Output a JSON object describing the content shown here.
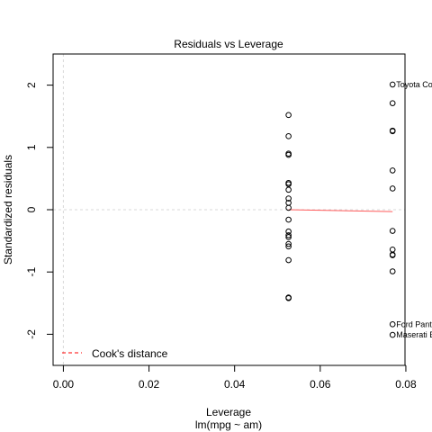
{
  "chart_data": {
    "type": "scatter",
    "title": "Residuals vs Leverage",
    "xlabel": "Leverage",
    "subtitle": "lm(mpg ~ am)",
    "ylabel": "Standardized residuals",
    "xlim": [
      -0.0024,
      0.0798
    ],
    "ylim": [
      -2.5,
      2.5
    ],
    "x_ticks": [
      "0.00",
      "0.02",
      "0.04",
      "0.06",
      "0.08"
    ],
    "x_tick_values": [
      0,
      0.02,
      0.04,
      0.06,
      0.08
    ],
    "y_ticks": [
      "-2",
      "-1",
      "0",
      "1",
      "2"
    ],
    "y_tick_values": [
      -2,
      -1,
      0,
      1,
      2
    ],
    "legend": {
      "position": "bottom-left",
      "entries": [
        {
          "label": "Cook's distance",
          "color": "#ff0000",
          "linetype": "dashed"
        }
      ]
    },
    "reference_lines": {
      "horizontal": 0,
      "vertical": 0,
      "color": "#d9d9d9",
      "linetype": "dotted"
    },
    "smooth_line": {
      "color": "#ff5a5a",
      "points": [
        {
          "x": 0.0526,
          "y": 0.0
        },
        {
          "x": 0.0769,
          "y": -0.03
        }
      ]
    },
    "points": [
      {
        "x": 0.0526,
        "y": 1.52
      },
      {
        "x": 0.0526,
        "y": 1.18
      },
      {
        "x": 0.0526,
        "y": 0.9
      },
      {
        "x": 0.0526,
        "y": 0.88
      },
      {
        "x": 0.0526,
        "y": 0.43
      },
      {
        "x": 0.0526,
        "y": 0.41
      },
      {
        "x": 0.0526,
        "y": 0.32
      },
      {
        "x": 0.0526,
        "y": 0.18
      },
      {
        "x": 0.0526,
        "y": 0.11
      },
      {
        "x": 0.0526,
        "y": 0.03
      },
      {
        "x": 0.0526,
        "y": -0.16
      },
      {
        "x": 0.0526,
        "y": -0.35
      },
      {
        "x": 0.0526,
        "y": -0.41
      },
      {
        "x": 0.0526,
        "y": -0.44
      },
      {
        "x": 0.0526,
        "y": -0.55
      },
      {
        "x": 0.0526,
        "y": -0.59
      },
      {
        "x": 0.0526,
        "y": -0.81
      },
      {
        "x": 0.0526,
        "y": -1.41
      },
      {
        "x": 0.0526,
        "y": -1.42
      },
      {
        "x": 0.0769,
        "y": 2.01
      },
      {
        "x": 0.0769,
        "y": 1.71
      },
      {
        "x": 0.0769,
        "y": 1.27
      },
      {
        "x": 0.0769,
        "y": 1.26
      },
      {
        "x": 0.0769,
        "y": 0.63
      },
      {
        "x": 0.0769,
        "y": 0.34
      },
      {
        "x": 0.0769,
        "y": -0.34
      },
      {
        "x": 0.0769,
        "y": -0.64
      },
      {
        "x": 0.0769,
        "y": -0.72
      },
      {
        "x": 0.0769,
        "y": -0.73
      },
      {
        "x": 0.0769,
        "y": -0.99
      },
      {
        "x": 0.0769,
        "y": -1.84
      },
      {
        "x": 0.0769,
        "y": -2.01
      }
    ],
    "annotations": [
      {
        "text": "Toyota Co",
        "x": 0.0769,
        "y": 2.01
      },
      {
        "text": "Ford Pante",
        "x": 0.0769,
        "y": -1.84
      },
      {
        "text": "Maserati B",
        "x": 0.0769,
        "y": -2.01
      }
    ]
  }
}
